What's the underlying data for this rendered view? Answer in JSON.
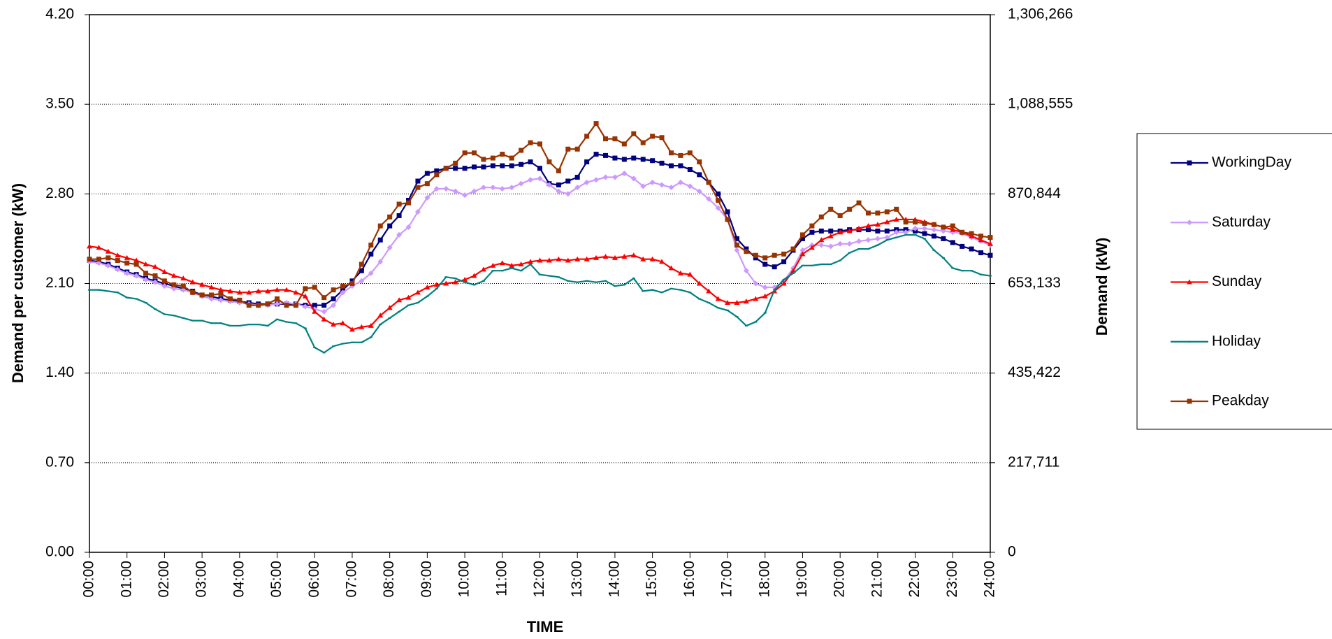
{
  "chart_data": {
    "type": "line",
    "xlabel": "TIME",
    "ylabel": "Demand per customer (kW)",
    "y2label": "Demand (kW)",
    "x": [
      0,
      0.25,
      0.5,
      0.75,
      1,
      1.25,
      1.5,
      1.75,
      2,
      2.25,
      2.5,
      2.75,
      3,
      3.25,
      3.5,
      3.75,
      4,
      4.25,
      4.5,
      4.75,
      5,
      5.25,
      5.5,
      5.75,
      6,
      6.25,
      6.5,
      6.75,
      7,
      7.25,
      7.5,
      7.75,
      8,
      8.25,
      8.5,
      8.75,
      9,
      9.25,
      9.5,
      9.75,
      10,
      10.25,
      10.5,
      10.75,
      11,
      11.25,
      11.5,
      11.75,
      12,
      12.25,
      12.5,
      12.75,
      13,
      13.25,
      13.5,
      13.75,
      14,
      14.25,
      14.5,
      14.75,
      15,
      15.25,
      15.5,
      15.75,
      16,
      16.25,
      16.5,
      16.75,
      17,
      17.25,
      17.5,
      17.75,
      18,
      18.25,
      18.5,
      18.75,
      19,
      19.25,
      19.5,
      19.75,
      20,
      20.25,
      20.5,
      20.75,
      21,
      21.25,
      21.5,
      21.75,
      22,
      22.25,
      22.5,
      22.75,
      23,
      23.25,
      23.5,
      23.75,
      24
    ],
    "xlim": [
      0,
      24
    ],
    "xticks": [
      {
        "value": 0,
        "label": "00:00"
      },
      {
        "value": 1,
        "label": "01:00"
      },
      {
        "value": 2,
        "label": "02:00"
      },
      {
        "value": 3,
        "label": "03:00"
      },
      {
        "value": 4,
        "label": "04:00"
      },
      {
        "value": 5,
        "label": "05:00"
      },
      {
        "value": 6,
        "label": "06:00"
      },
      {
        "value": 7,
        "label": "07:00"
      },
      {
        "value": 8,
        "label": "08:00"
      },
      {
        "value": 9,
        "label": "09:00"
      },
      {
        "value": 10,
        "label": "10:00"
      },
      {
        "value": 11,
        "label": "11:00"
      },
      {
        "value": 12,
        "label": "12:00"
      },
      {
        "value": 13,
        "label": "13:00"
      },
      {
        "value": 14,
        "label": "14:00"
      },
      {
        "value": 15,
        "label": "15:00"
      },
      {
        "value": 16,
        "label": "16:00"
      },
      {
        "value": 17,
        "label": "17:00"
      },
      {
        "value": 18,
        "label": "18:00"
      },
      {
        "value": 19,
        "label": "19:00"
      },
      {
        "value": 20,
        "label": "20:00"
      },
      {
        "value": 21,
        "label": "21:00"
      },
      {
        "value": 22,
        "label": "22:00"
      },
      {
        "value": 23,
        "label": "23:00"
      },
      {
        "value": 24,
        "label": "24:00"
      }
    ],
    "ylim": [
      0,
      4.2
    ],
    "yticks": [
      {
        "value": 0,
        "label": "0.00"
      },
      {
        "value": 0.7,
        "label": "0.70"
      },
      {
        "value": 1.4,
        "label": "1.40"
      },
      {
        "value": 2.1,
        "label": "2.10"
      },
      {
        "value": 2.8,
        "label": "2.80"
      },
      {
        "value": 3.5,
        "label": "3.50"
      },
      {
        "value": 4.2,
        "label": "4.20"
      }
    ],
    "y2lim": [
      0,
      1306266
    ],
    "y2ticks": [
      0,
      {
        "value": 217711,
        "label": "217,711"
      },
      {
        "value": 435422,
        "label": "435,422"
      },
      {
        "value": 653133,
        "label": "653,133"
      },
      {
        "value": 870844,
        "label": "870,844"
      },
      {
        "value": 1088555,
        "label": "1,088,555"
      },
      {
        "value": 1306266,
        "label": "1,306,266"
      }
    ],
    "grid": true,
    "legend": "right",
    "series": [
      {
        "name": "WorkingDay",
        "color": "#000080",
        "marker": "square",
        "values": [
          2.28,
          2.27,
          2.25,
          2.22,
          2.19,
          2.17,
          2.14,
          2.12,
          2.1,
          2.08,
          2.06,
          2.04,
          2.01,
          2.0,
          1.98,
          1.97,
          1.96,
          1.95,
          1.94,
          1.94,
          1.94,
          1.94,
          1.94,
          1.93,
          1.93,
          1.93,
          1.98,
          2.05,
          2.12,
          2.2,
          2.33,
          2.44,
          2.55,
          2.63,
          2.75,
          2.9,
          2.96,
          2.98,
          3.0,
          3.0,
          3.0,
          3.01,
          3.01,
          3.02,
          3.02,
          3.02,
          3.03,
          3.05,
          3.0,
          2.88,
          2.87,
          2.9,
          2.93,
          3.05,
          3.11,
          3.1,
          3.08,
          3.07,
          3.08,
          3.07,
          3.06,
          3.04,
          3.02,
          3.02,
          2.99,
          2.95,
          2.89,
          2.8,
          2.66,
          2.45,
          2.37,
          2.3,
          2.25,
          2.23,
          2.27,
          2.36,
          2.45,
          2.5,
          2.51,
          2.51,
          2.51,
          2.52,
          2.52,
          2.52,
          2.51,
          2.51,
          2.52,
          2.52,
          2.51,
          2.49,
          2.47,
          2.45,
          2.42,
          2.39,
          2.37,
          2.34,
          2.32
        ]
      },
      {
        "name": "Saturday",
        "color": "#cc99ff",
        "marker": "diamond",
        "values": [
          2.27,
          2.26,
          2.24,
          2.21,
          2.18,
          2.16,
          2.13,
          2.11,
          2.08,
          2.06,
          2.05,
          2.03,
          2.0,
          1.98,
          1.97,
          1.96,
          1.95,
          1.94,
          1.93,
          1.93,
          1.94,
          1.95,
          1.94,
          1.92,
          1.9,
          1.88,
          1.93,
          2.03,
          2.08,
          2.12,
          2.18,
          2.27,
          2.38,
          2.48,
          2.54,
          2.66,
          2.77,
          2.84,
          2.84,
          2.82,
          2.79,
          2.82,
          2.85,
          2.85,
          2.84,
          2.85,
          2.88,
          2.91,
          2.92,
          2.87,
          2.82,
          2.8,
          2.85,
          2.89,
          2.91,
          2.93,
          2.93,
          2.96,
          2.92,
          2.86,
          2.89,
          2.87,
          2.85,
          2.89,
          2.86,
          2.82,
          2.76,
          2.69,
          2.6,
          2.36,
          2.2,
          2.1,
          2.07,
          2.07,
          2.12,
          2.22,
          2.36,
          2.4,
          2.4,
          2.39,
          2.41,
          2.41,
          2.43,
          2.44,
          2.45,
          2.46,
          2.5,
          2.5,
          2.53,
          2.53,
          2.52,
          2.51,
          2.5,
          2.49,
          2.46,
          2.43,
          2.4
        ]
      },
      {
        "name": "Sunday",
        "color": "#ff0000",
        "marker": "triangle",
        "values": [
          2.39,
          2.38,
          2.35,
          2.32,
          2.3,
          2.28,
          2.25,
          2.23,
          2.19,
          2.16,
          2.14,
          2.11,
          2.09,
          2.07,
          2.05,
          2.04,
          2.03,
          2.03,
          2.04,
          2.04,
          2.05,
          2.05,
          2.03,
          2.0,
          1.88,
          1.82,
          1.78,
          1.79,
          1.74,
          1.76,
          1.77,
          1.85,
          1.91,
          1.97,
          1.99,
          2.03,
          2.07,
          2.09,
          2.1,
          2.11,
          2.13,
          2.16,
          2.21,
          2.24,
          2.26,
          2.24,
          2.25,
          2.27,
          2.28,
          2.28,
          2.29,
          2.28,
          2.29,
          2.29,
          2.3,
          2.31,
          2.3,
          2.31,
          2.32,
          2.29,
          2.29,
          2.27,
          2.22,
          2.18,
          2.17,
          2.1,
          2.04,
          1.98,
          1.95,
          1.95,
          1.96,
          1.98,
          2.0,
          2.04,
          2.1,
          2.2,
          2.33,
          2.38,
          2.44,
          2.47,
          2.5,
          2.51,
          2.53,
          2.55,
          2.56,
          2.58,
          2.6,
          2.6,
          2.6,
          2.58,
          2.56,
          2.54,
          2.52,
          2.5,
          2.47,
          2.44,
          2.41
        ]
      },
      {
        "name": "Holiday",
        "color": "#008080",
        "marker": "dash",
        "values": [
          2.05,
          2.05,
          2.04,
          2.03,
          1.99,
          1.98,
          1.95,
          1.9,
          1.86,
          1.85,
          1.83,
          1.81,
          1.81,
          1.79,
          1.79,
          1.77,
          1.77,
          1.78,
          1.78,
          1.77,
          1.82,
          1.8,
          1.79,
          1.75,
          1.6,
          1.56,
          1.61,
          1.63,
          1.64,
          1.64,
          1.68,
          1.78,
          1.83,
          1.88,
          1.93,
          1.95,
          2.0,
          2.06,
          2.15,
          2.14,
          2.11,
          2.09,
          2.12,
          2.2,
          2.2,
          2.22,
          2.2,
          2.25,
          2.17,
          2.16,
          2.15,
          2.12,
          2.11,
          2.12,
          2.11,
          2.12,
          2.08,
          2.09,
          2.14,
          2.04,
          2.05,
          2.03,
          2.06,
          2.05,
          2.03,
          1.98,
          1.95,
          1.91,
          1.89,
          1.84,
          1.77,
          1.8,
          1.87,
          2.05,
          2.13,
          2.18,
          2.24,
          2.24,
          2.25,
          2.25,
          2.28,
          2.34,
          2.37,
          2.37,
          2.4,
          2.44,
          2.46,
          2.48,
          2.48,
          2.45,
          2.36,
          2.3,
          2.22,
          2.2,
          2.2,
          2.17,
          2.16
        ]
      },
      {
        "name": "Peakday",
        "color": "#993300",
        "marker": "square",
        "values": [
          2.29,
          2.29,
          2.3,
          2.28,
          2.26,
          2.25,
          2.18,
          2.16,
          2.12,
          2.09,
          2.08,
          2.03,
          2.01,
          2.01,
          2.02,
          1.98,
          1.97,
          1.93,
          1.93,
          1.94,
          1.98,
          1.93,
          1.93,
          2.06,
          2.07,
          1.99,
          2.05,
          2.08,
          2.1,
          2.25,
          2.4,
          2.55,
          2.62,
          2.72,
          2.73,
          2.85,
          2.88,
          2.95,
          3.0,
          3.04,
          3.12,
          3.12,
          3.07,
          3.08,
          3.11,
          3.08,
          3.14,
          3.2,
          3.19,
          3.05,
          2.98,
          3.15,
          3.15,
          3.25,
          3.35,
          3.23,
          3.23,
          3.19,
          3.27,
          3.2,
          3.25,
          3.24,
          3.12,
          3.1,
          3.12,
          3.05,
          2.89,
          2.75,
          2.6,
          2.4,
          2.35,
          2.32,
          2.3,
          2.32,
          2.33,
          2.37,
          2.48,
          2.55,
          2.62,
          2.68,
          2.63,
          2.68,
          2.73,
          2.65,
          2.65,
          2.66,
          2.68,
          2.58,
          2.58,
          2.57,
          2.56,
          2.54,
          2.55,
          2.5,
          2.49,
          2.47,
          2.46
        ]
      }
    ]
  }
}
